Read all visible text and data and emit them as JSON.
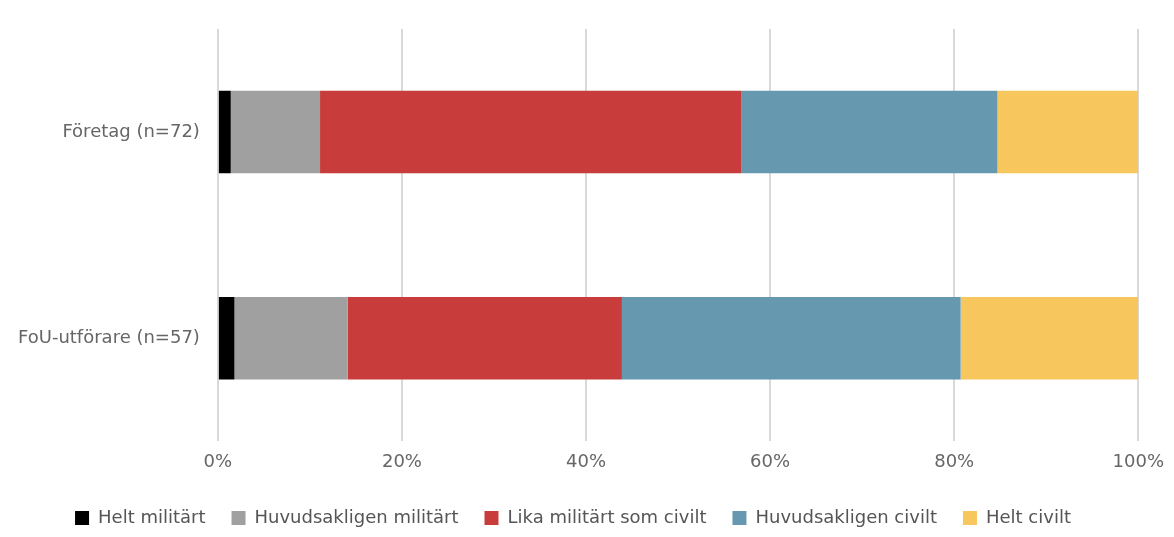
{
  "chart_data": {
    "type": "bar",
    "orientation": "horizontal",
    "stacked": true,
    "categories": [
      "Företag (n=72)",
      "FoU-utförare (n=57)"
    ],
    "series": [
      {
        "name": "Helt militärt",
        "color": "#000000",
        "values": [
          1.4,
          1.8
        ]
      },
      {
        "name": "Huvudsakligen militärt",
        "color": "#a0a0a0",
        "values": [
          9.7,
          12.3
        ]
      },
      {
        "name": "Lika militärt som civilt",
        "color": "#c83c3c",
        "values": [
          45.8,
          29.8
        ]
      },
      {
        "name": "Huvudsakligen civilt",
        "color": "#6699b0",
        "values": [
          27.8,
          36.8
        ]
      },
      {
        "name": "Helt civilt",
        "color": "#f7c65c",
        "values": [
          15.3,
          19.3
        ]
      }
    ],
    "xlim": [
      0,
      100
    ],
    "xticks": [
      {
        "value": 0,
        "label": "0%"
      },
      {
        "value": 20,
        "label": "20%"
      },
      {
        "value": 40,
        "label": "40%"
      },
      {
        "value": 60,
        "label": "60%"
      },
      {
        "value": 80,
        "label": "80%"
      },
      {
        "value": 100,
        "label": "100%"
      }
    ],
    "grid": "x",
    "legend": "bottom"
  }
}
